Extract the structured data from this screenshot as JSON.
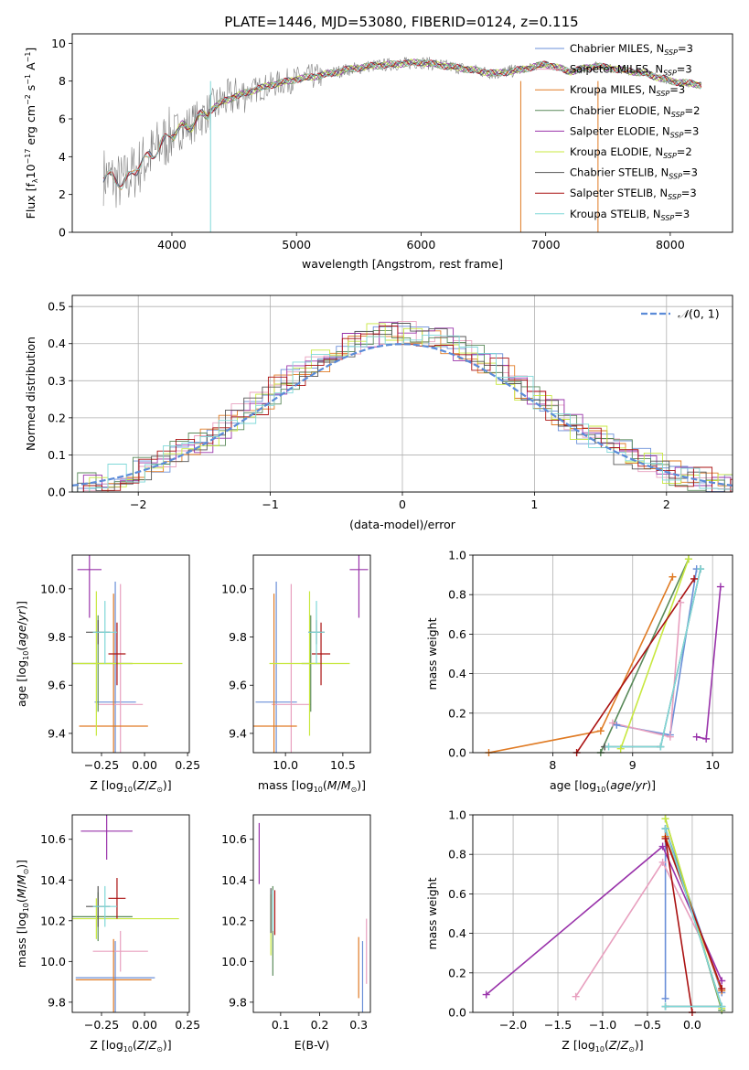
{
  "figure": {
    "title": "PLATE=1446, MJD=53080, FIBERID=0124, z=0.115",
    "model_colors": {
      "Chabrier MILES": "#6a8fd8",
      "Salpeter MILES": "#e8a0bf",
      "Kroupa MILES": "#e07b24",
      "Chabrier ELODIE": "#5a8a5a",
      "Salpeter ELODIE": "#9933aa",
      "Kroupa ELODIE": "#c8e840",
      "Chabrier STELIB": "#555555",
      "Salpeter STELIB": "#aa1111",
      "Kroupa STELIB": "#7fd8d8"
    }
  },
  "chart_data": [
    {
      "id": "spectrum",
      "type": "line",
      "xlabel": "wavelength [Angstrom, rest frame]",
      "ylabel": "Flux [f",
      "xlim": [
        3200,
        8500
      ],
      "ylim": [
        0,
        10.5
      ],
      "xticks": [
        4000,
        5000,
        6000,
        7000,
        8000
      ],
      "yticks": [
        0,
        2,
        4,
        6,
        8,
        10
      ],
      "legend_position": "top-right",
      "legend": [
        {
          "model": "Chabrier MILES",
          "label": "Chabrier MILES, N"
        },
        {
          "model": "Salpeter MILES",
          "label": "Salpeter MILES, N"
        },
        {
          "model": "Kroupa MILES",
          "label": "Kroupa MILES, N"
        },
        {
          "model": "Chabrier ELODIE",
          "label": "Chabrier ELODIE, N"
        },
        {
          "model": "Salpeter ELODIE",
          "label": "Salpeter ELODIE, N"
        },
        {
          "model": "Kroupa ELODIE",
          "label": "Kroupa ELODIE, N"
        },
        {
          "model": "Chabrier STELIB",
          "label": "Chabrier STELIB, N"
        },
        {
          "model": "Salpeter STELIB",
          "label": "Salpeter STELIB, N"
        },
        {
          "model": "Kroupa STELIB",
          "label": "Kroupa STELIB, N"
        }
      ],
      "legend_nssp": [
        3,
        3,
        3,
        2,
        3,
        2,
        3,
        3,
        3
      ],
      "data_envelope": {
        "x": [
          3450,
          3600,
          3800,
          4000,
          4200,
          4400,
          4600,
          4800,
          5000,
          5200,
          5400,
          5600,
          5800,
          6000,
          6200,
          6400,
          6600,
          6800,
          7000,
          7200,
          7400,
          7600,
          7800,
          8000,
          8250
        ],
        "y": [
          3.0,
          2.6,
          3.9,
          5.2,
          5.9,
          6.9,
          7.4,
          7.8,
          8.1,
          8.3,
          8.6,
          8.8,
          8.9,
          9.0,
          8.8,
          8.6,
          8.4,
          8.6,
          8.9,
          8.5,
          8.8,
          8.6,
          8.4,
          8.0,
          7.8
        ]
      }
    },
    {
      "id": "residuals",
      "type": "histogram",
      "xlabel": "(data-model)/error",
      "ylabel": "Normed distribution",
      "xlim": [
        -2.5,
        2.5
      ],
      "ylim": [
        0,
        0.53
      ],
      "xticks": [
        -2,
        -1,
        0,
        1,
        2
      ],
      "yticks": [
        0.0,
        0.1,
        0.2,
        0.3,
        0.4,
        0.5
      ],
      "legend_position": "top-right",
      "legend_label": "N(0, 1)",
      "reference_curve": "normal(0,1)"
    },
    {
      "id": "age_vs_Z",
      "type": "errorbar",
      "xlabel": "Z [log",
      "ylabel": "age  [log",
      "xlim": [
        -0.42,
        0.26
      ],
      "ylim": [
        9.32,
        10.14
      ],
      "xticks": [
        -0.25,
        0.0,
        0.25
      ],
      "yticks": [
        9.4,
        9.6,
        9.8,
        10.0
      ],
      "points": [
        {
          "model": "Chabrier MILES",
          "x": -0.17,
          "xerr": 0.12,
          "y": 9.53,
          "yerr": 0.5
        },
        {
          "model": "Salpeter MILES",
          "x": -0.14,
          "xerr": 0.13,
          "y": 9.52,
          "yerr": 0.5
        },
        {
          "model": "Kroupa MILES",
          "x": -0.18,
          "xerr": 0.2,
          "y": 9.43,
          "yerr": 0.55
        },
        {
          "model": "Chabrier ELODIE",
          "x": -0.27,
          "xerr": 0.2,
          "y": 9.69,
          "yerr": 0.2
        },
        {
          "model": "Salpeter ELODIE",
          "x": -0.32,
          "xerr": 0.07,
          "y": 10.08,
          "yerr": 0.2
        },
        {
          "model": "Kroupa ELODIE",
          "x": -0.28,
          "xerr": 0.5,
          "y": 9.69,
          "yerr": 0.3
        },
        {
          "model": "Chabrier STELIB",
          "x": -0.27,
          "xerr": 0.07,
          "y": 9.82,
          "yerr": 0.05
        },
        {
          "model": "Salpeter STELIB",
          "x": -0.16,
          "xerr": 0.05,
          "y": 9.73,
          "yerr": 0.13
        },
        {
          "model": "Kroupa STELIB",
          "x": -0.23,
          "xerr": 0.07,
          "y": 9.82,
          "yerr": 0.13
        }
      ]
    },
    {
      "id": "age_vs_mass",
      "type": "errorbar",
      "xlabel": "mass [log",
      "ylabel": "",
      "xlim": [
        9.72,
        10.74
      ],
      "ylim": [
        9.32,
        10.14
      ],
      "xticks": [
        10.0,
        10.5
      ],
      "yticks": [
        9.4,
        9.6,
        9.8,
        10.0
      ],
      "points": [
        {
          "model": "Chabrier MILES",
          "x": 9.92,
          "xerr": 0.18,
          "y": 9.53,
          "yerr": 0.5
        },
        {
          "model": "Salpeter MILES",
          "x": 10.05,
          "xerr": 0.17,
          "y": 9.52,
          "yerr": 0.5
        },
        {
          "model": "Kroupa MILES",
          "x": 9.9,
          "xerr": 0.2,
          "y": 9.43,
          "yerr": 0.55
        },
        {
          "model": "Chabrier ELODIE",
          "x": 10.22,
          "xerr": 0.08,
          "y": 9.69,
          "yerr": 0.2
        },
        {
          "model": "Salpeter ELODIE",
          "x": 10.64,
          "xerr": 0.08,
          "y": 10.08,
          "yerr": 0.2
        },
        {
          "model": "Kroupa ELODIE",
          "x": 10.21,
          "xerr": 0.35,
          "y": 9.69,
          "yerr": 0.3
        },
        {
          "model": "Chabrier STELIB",
          "x": 10.27,
          "xerr": 0.07,
          "y": 9.82,
          "yerr": 0.05
        },
        {
          "model": "Salpeter STELIB",
          "x": 10.31,
          "xerr": 0.08,
          "y": 9.73,
          "yerr": 0.13
        },
        {
          "model": "Kroupa STELIB",
          "x": 10.27,
          "xerr": 0.07,
          "y": 9.82,
          "yerr": 0.13
        }
      ]
    },
    {
      "id": "weight_vs_age",
      "type": "line",
      "xlabel": "age  [log",
      "ylabel": "mass weight",
      "xlim": [
        7.0,
        10.25
      ],
      "ylim": [
        0,
        1
      ],
      "xticks": [
        8,
        9,
        10
      ],
      "yticks": [
        0.0,
        0.2,
        0.4,
        0.6,
        0.8,
        1.0
      ],
      "series": [
        {
          "model": "Chabrier MILES",
          "points": [
            [
              8.8,
              0.14
            ],
            [
              9.47,
              0.09
            ],
            [
              9.8,
              0.93
            ]
          ]
        },
        {
          "model": "Salpeter MILES",
          "points": [
            [
              8.75,
              0.15
            ],
            [
              9.47,
              0.08
            ],
            [
              9.6,
              0.76
            ]
          ]
        },
        {
          "model": "Kroupa MILES",
          "points": [
            [
              7.2,
              0.0
            ],
            [
              8.6,
              0.11
            ],
            [
              9.5,
              0.89
            ]
          ]
        },
        {
          "model": "Chabrier ELODIE",
          "points": [
            [
              8.6,
              0.0
            ],
            [
              9.7,
              0.98
            ]
          ]
        },
        {
          "model": "Salpeter ELODIE",
          "points": [
            [
              9.8,
              0.08
            ],
            [
              9.92,
              0.07
            ],
            [
              10.1,
              0.84
            ]
          ]
        },
        {
          "model": "Kroupa ELODIE",
          "points": [
            [
              8.85,
              0.02
            ],
            [
              9.7,
              0.98
            ]
          ]
        },
        {
          "model": "Chabrier STELIB",
          "points": [
            [
              8.65,
              0.03
            ],
            [
              9.35,
              0.03
            ],
            [
              9.85,
              0.93
            ]
          ]
        },
        {
          "model": "Salpeter STELIB",
          "points": [
            [
              8.3,
              0.0
            ],
            [
              9.77,
              0.88
            ]
          ]
        },
        {
          "model": "Kroupa STELIB",
          "points": [
            [
              8.7,
              0.03
            ],
            [
              9.35,
              0.03
            ],
            [
              9.85,
              0.93
            ]
          ]
        }
      ]
    },
    {
      "id": "mass_vs_Z",
      "type": "errorbar",
      "xlabel": "Z [log",
      "ylabel": "mass [log",
      "xlim": [
        -0.42,
        0.26
      ],
      "ylim": [
        9.75,
        10.72
      ],
      "xticks": [
        -0.25,
        0.0,
        0.25
      ],
      "yticks": [
        9.8,
        10.0,
        10.2,
        10.4,
        10.6
      ],
      "points": [
        {
          "model": "Chabrier MILES",
          "x": -0.17,
          "xerr": 0.23,
          "y": 9.92,
          "yerr": 0.18
        },
        {
          "model": "Salpeter MILES",
          "x": -0.14,
          "xerr": 0.16,
          "y": 10.05,
          "yerr": 0.1
        },
        {
          "model": "Kroupa MILES",
          "x": -0.18,
          "xerr": 0.22,
          "y": 9.91,
          "yerr": 0.2
        },
        {
          "model": "Chabrier ELODIE",
          "x": -0.27,
          "xerr": 0.2,
          "y": 10.22,
          "yerr": 0.12
        },
        {
          "model": "Salpeter ELODIE",
          "x": -0.22,
          "xerr": 0.15,
          "y": 10.64,
          "yerr": 0.14
        },
        {
          "model": "Kroupa ELODIE",
          "x": -0.28,
          "xerr": 0.48,
          "y": 10.21,
          "yerr": 0.1
        },
        {
          "model": "Chabrier STELIB",
          "x": -0.27,
          "xerr": 0.07,
          "y": 10.27,
          "yerr": 0.1
        },
        {
          "model": "Salpeter STELIB",
          "x": -0.16,
          "xerr": 0.05,
          "y": 10.31,
          "yerr": 0.1
        },
        {
          "model": "Kroupa STELIB",
          "x": -0.23,
          "xerr": 0.07,
          "y": 10.27,
          "yerr": 0.1
        }
      ]
    },
    {
      "id": "mass_vs_ebv",
      "type": "errorbar",
      "xlabel": "E(B-V)",
      "ylabel": "",
      "xlim": [
        0.03,
        0.33
      ],
      "ylim": [
        9.75,
        10.72
      ],
      "xticks": [
        0.1,
        0.2,
        0.3
      ],
      "yticks": [
        9.8,
        10.0,
        10.2,
        10.4,
        10.6
      ],
      "points": [
        {
          "model": "Chabrier MILES",
          "x": 0.31,
          "xerr": 0,
          "y": 9.92,
          "yerr": 0.18
        },
        {
          "model": "Salpeter MILES",
          "x": 0.32,
          "xerr": 0,
          "y": 10.05,
          "yerr": 0.16
        },
        {
          "model": "Kroupa MILES",
          "x": 0.3,
          "xerr": 0,
          "y": 9.97,
          "yerr": 0.15
        },
        {
          "model": "Chabrier ELODIE",
          "x": 0.08,
          "xerr": 0,
          "y": 10.15,
          "yerr": 0.22
        },
        {
          "model": "Salpeter ELODIE",
          "x": 0.045,
          "xerr": 0,
          "y": 10.53,
          "yerr": 0.15
        },
        {
          "model": "Kroupa ELODIE",
          "x": 0.075,
          "xerr": 0,
          "y": 10.18,
          "yerr": 0.15
        },
        {
          "model": "Chabrier STELIB",
          "x": 0.075,
          "xerr": 0,
          "y": 10.25,
          "yerr": 0.11
        },
        {
          "model": "Salpeter STELIB",
          "x": 0.085,
          "xerr": 0,
          "y": 10.24,
          "yerr": 0.11
        },
        {
          "model": "Kroupa STELIB",
          "x": 0.08,
          "xerr": 0,
          "y": 10.25,
          "yerr": 0.1
        }
      ]
    },
    {
      "id": "weight_vs_Z",
      "type": "line",
      "xlabel": "Z [log",
      "ylabel": "mass weight",
      "xlim": [
        -2.45,
        0.45
      ],
      "ylim": [
        0,
        1
      ],
      "xticks": [
        -2.0,
        -1.5,
        -1.0,
        -0.5,
        0.0
      ],
      "yticks": [
        0.0,
        0.2,
        0.4,
        0.6,
        0.8,
        1.0
      ],
      "series": [
        {
          "model": "Chabrier MILES",
          "points": [
            [
              -0.3,
              0.07
            ],
            [
              -0.3,
              0.93
            ],
            [
              0.33,
              0.1
            ]
          ]
        },
        {
          "model": "Salpeter MILES",
          "points": [
            [
              -1.3,
              0.08
            ],
            [
              -0.33,
              0.76
            ],
            [
              0.33,
              0.16
            ]
          ]
        },
        {
          "model": "Kroupa MILES",
          "points": [
            [
              -0.3,
              0.89
            ],
            [
              0.33,
              0.11
            ]
          ]
        },
        {
          "model": "Chabrier ELODIE",
          "points": [
            [
              -0.3,
              0.98
            ],
            [
              0.33,
              0.01
            ]
          ]
        },
        {
          "model": "Salpeter ELODIE",
          "points": [
            [
              -2.3,
              0.09
            ],
            [
              -0.33,
              0.84
            ],
            [
              0.33,
              0.16
            ]
          ]
        },
        {
          "model": "Kroupa ELODIE",
          "points": [
            [
              -0.3,
              0.98
            ],
            [
              0.33,
              0.02
            ]
          ]
        },
        {
          "model": "Chabrier STELIB",
          "points": [
            [
              -0.3,
              0.03
            ],
            [
              0.33,
              0.03
            ],
            [
              -0.3,
              0.93
            ]
          ]
        },
        {
          "model": "Salpeter STELIB",
          "points": [
            [
              0.0,
              0.0
            ],
            [
              -0.3,
              0.88
            ],
            [
              0.33,
              0.12
            ]
          ]
        },
        {
          "model": "Kroupa STELIB",
          "points": [
            [
              -0.3,
              0.03
            ],
            [
              0.33,
              0.03
            ],
            [
              -0.3,
              0.93
            ]
          ]
        }
      ]
    }
  ]
}
